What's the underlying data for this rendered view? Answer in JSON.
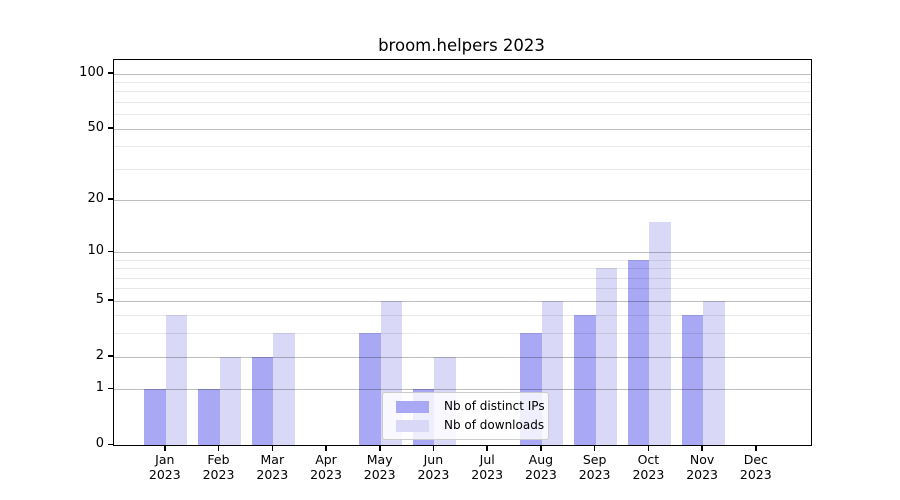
{
  "chart_data": {
    "type": "bar",
    "title": "broom.helpers 2023",
    "x_year": "2023",
    "categories": [
      "Jan",
      "Feb",
      "Mar",
      "Apr",
      "May",
      "Jun",
      "Jul",
      "Aug",
      "Sep",
      "Oct",
      "Nov",
      "Dec"
    ],
    "series": [
      {
        "name": "Nb of distinct IPs",
        "color": "#a8a8f4",
        "values": [
          1,
          1,
          2,
          0,
          3,
          1,
          0,
          3,
          4,
          9,
          4,
          0
        ]
      },
      {
        "name": "Nb of downloads",
        "color": "#d9d9f7",
        "values": [
          4,
          2,
          3,
          0,
          5,
          2,
          0,
          5,
          8,
          15,
          5,
          0
        ]
      }
    ],
    "y_axis": {
      "scale": "log1p",
      "ticks": [
        0,
        1,
        2,
        5,
        10,
        20,
        50,
        100
      ],
      "minor_gridlines": [
        3,
        4,
        6,
        7,
        8,
        9,
        30,
        40,
        60,
        70,
        80,
        90
      ],
      "range": [
        0,
        118
      ]
    },
    "legend": {
      "position": "lower center"
    },
    "grid": "on"
  }
}
